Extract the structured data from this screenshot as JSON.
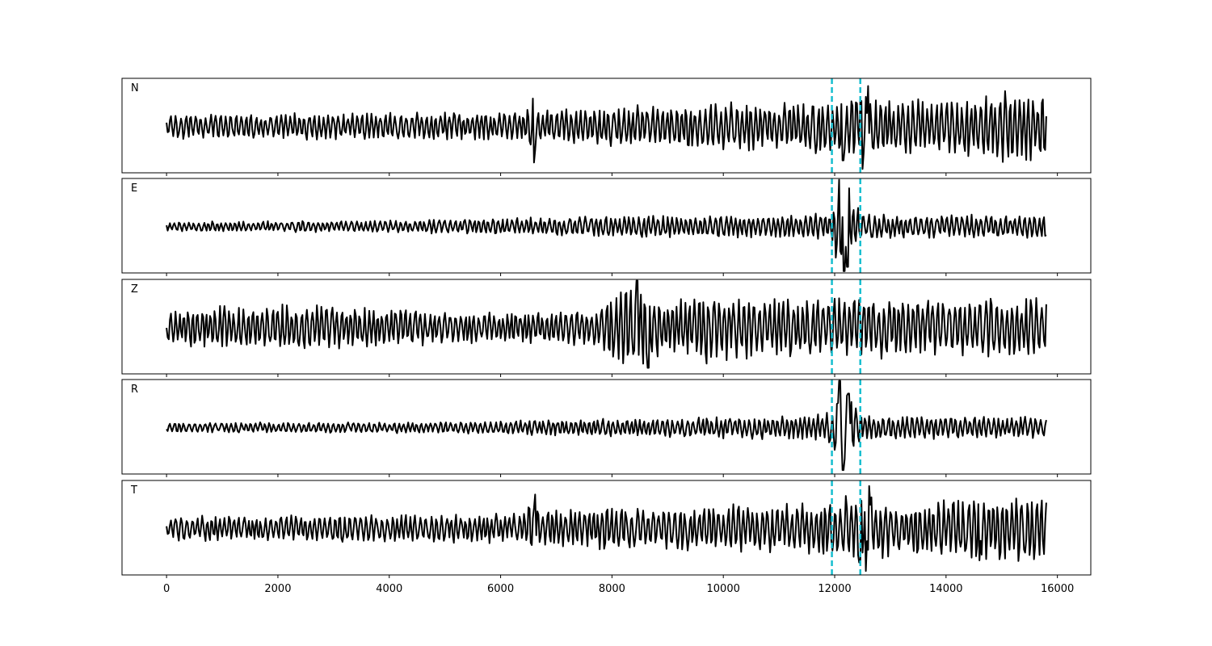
{
  "chart_data": {
    "type": "line",
    "title": "",
    "xlabel": "",
    "ylabel": "",
    "xlim": [
      -800,
      16600
    ],
    "x_ticks": [
      0,
      2000,
      4000,
      6000,
      8000,
      10000,
      12000,
      14000,
      16000
    ],
    "x_tick_labels": [
      "0",
      "2000",
      "4000",
      "6000",
      "8000",
      "10000",
      "12000",
      "14000",
      "16000"
    ],
    "sample_count": 15800,
    "grid": false,
    "markers": {
      "color": "#17becf",
      "style": "dashed",
      "x": [
        11950,
        12460
      ]
    },
    "trace_color": "#000000",
    "panels": [
      {
        "label": "N",
        "seed": 11,
        "envelope": [
          [
            0,
            0.3
          ],
          [
            3000,
            0.33
          ],
          [
            6400,
            0.34
          ],
          [
            6600,
            0.75
          ],
          [
            6700,
            0.4
          ],
          [
            7800,
            0.48
          ],
          [
            10000,
            0.58
          ],
          [
            11500,
            0.62
          ],
          [
            12000,
            0.7
          ],
          [
            12300,
            0.95
          ],
          [
            12600,
            0.85
          ],
          [
            13200,
            0.62
          ],
          [
            14000,
            0.72
          ],
          [
            15000,
            0.85
          ],
          [
            15800,
            0.8
          ]
        ],
        "spikes": [
          [
            6600,
            -0.85
          ],
          [
            12150,
            -0.8
          ],
          [
            12500,
            -1.0
          ],
          [
            12600,
            0.95
          ],
          [
            14400,
            -0.7
          ]
        ]
      },
      {
        "label": "E",
        "seed": 23,
        "envelope": [
          [
            0,
            0.12
          ],
          [
            4000,
            0.15
          ],
          [
            6000,
            0.2
          ],
          [
            8000,
            0.25
          ],
          [
            10500,
            0.28
          ],
          [
            11600,
            0.32
          ],
          [
            11950,
            0.4
          ],
          [
            12100,
            1.2
          ],
          [
            12400,
            0.6
          ],
          [
            12500,
            0.3
          ],
          [
            15800,
            0.28
          ]
        ],
        "spikes": [
          [
            12080,
            1.15
          ],
          [
            12170,
            -1.05
          ],
          [
            12260,
            0.9
          ],
          [
            12230,
            -0.95
          ]
        ]
      },
      {
        "label": "Z",
        "seed": 37,
        "envelope": [
          [
            0,
            0.5
          ],
          [
            2000,
            0.55
          ],
          [
            3500,
            0.5
          ],
          [
            5500,
            0.4
          ],
          [
            6000,
            0.35
          ],
          [
            7800,
            0.48
          ],
          [
            8100,
            0.95
          ],
          [
            8600,
            1.05
          ],
          [
            9000,
            0.62
          ],
          [
            9700,
            0.82
          ],
          [
            11000,
            0.72
          ],
          [
            12000,
            0.7
          ],
          [
            13000,
            0.75
          ],
          [
            15800,
            0.72
          ]
        ],
        "spikes": [
          [
            8450,
            1.1
          ],
          [
            8650,
            -0.95
          ],
          [
            9700,
            -0.85
          ]
        ]
      },
      {
        "label": "R",
        "seed": 51,
        "envelope": [
          [
            0,
            0.12
          ],
          [
            5000,
            0.14
          ],
          [
            7500,
            0.2
          ],
          [
            10000,
            0.26
          ],
          [
            11600,
            0.32
          ],
          [
            11950,
            0.4
          ],
          [
            12100,
            1.15
          ],
          [
            12400,
            0.6
          ],
          [
            12500,
            0.3
          ],
          [
            15800,
            0.26
          ]
        ],
        "spikes": [
          [
            12090,
            1.1
          ],
          [
            12150,
            -1.0
          ],
          [
            12250,
            0.8
          ]
        ]
      },
      {
        "label": "T",
        "seed": 67,
        "envelope": [
          [
            0,
            0.3
          ],
          [
            3000,
            0.34
          ],
          [
            6400,
            0.36
          ],
          [
            6600,
            0.75
          ],
          [
            6700,
            0.42
          ],
          [
            7800,
            0.5
          ],
          [
            10000,
            0.58
          ],
          [
            11500,
            0.62
          ],
          [
            12000,
            0.75
          ],
          [
            12300,
            0.95
          ],
          [
            12600,
            0.85
          ],
          [
            13200,
            0.62
          ],
          [
            14000,
            0.72
          ],
          [
            15000,
            0.82
          ],
          [
            15800,
            0.78
          ]
        ],
        "spikes": [
          [
            6620,
            0.8
          ],
          [
            12450,
            -0.8
          ],
          [
            12560,
            -1.0
          ],
          [
            12620,
            1.0
          ],
          [
            14600,
            -0.75
          ]
        ]
      }
    ]
  }
}
